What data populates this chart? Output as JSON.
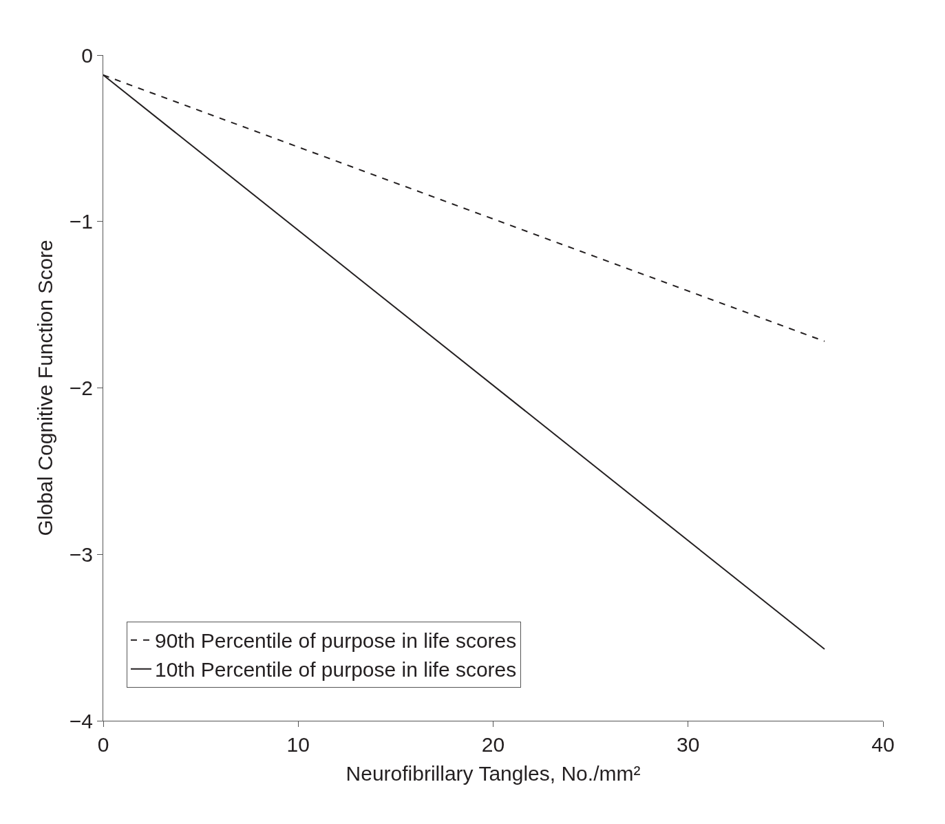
{
  "chart_data": {
    "type": "line",
    "xlabel": "Neurofibrillary Tangles, No./mm²",
    "ylabel": "Global Cognitive Function Score",
    "x": [
      0,
      37
    ],
    "series": [
      {
        "name": "90th Percentile of purpose in life scores",
        "color": "#231f20",
        "line_style": "dashed",
        "values": [
          -0.12,
          -1.72
        ]
      },
      {
        "name": "10th Percentile of purpose in life scores",
        "color": "#231f20",
        "line_style": "solid",
        "values": [
          -0.12,
          -3.57
        ]
      }
    ],
    "xlim": [
      0,
      40
    ],
    "xticks": [
      0,
      10,
      20,
      30,
      40
    ],
    "ylim": [
      -4,
      0
    ],
    "yticks": [
      {
        "value": -4,
        "label": "−4"
      },
      {
        "value": -3,
        "label": "−3"
      },
      {
        "value": -2,
        "label": "−2"
      },
      {
        "value": -1,
        "label": "−1"
      },
      0
    ],
    "legend": "bottom left",
    "marker": "none"
  }
}
